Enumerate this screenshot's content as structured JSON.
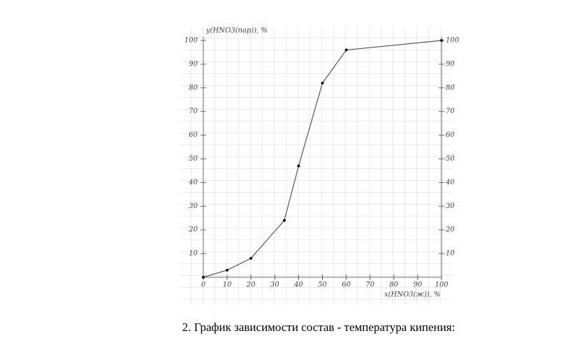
{
  "chart_data": {
    "type": "line",
    "ylabel": "y(HNO3(пар)), %",
    "xlabel": "x(HNO3(ж)), %",
    "caption": "2. График зависимости состав - температура кипения:",
    "x": [
      0,
      10,
      20,
      34,
      40,
      50,
      60,
      100
    ],
    "values": [
      0,
      3,
      8,
      24,
      47,
      82,
      96,
      100
    ],
    "color": "#555555",
    "xlim": [
      0,
      100
    ],
    "ylim": [
      0,
      100
    ],
    "xticks": [
      0,
      10,
      20,
      30,
      40,
      50,
      60,
      70,
      80,
      90,
      100
    ],
    "yticks": [
      10,
      20,
      30,
      40,
      50,
      60,
      70,
      80,
      90,
      100
    ],
    "grid": true
  }
}
